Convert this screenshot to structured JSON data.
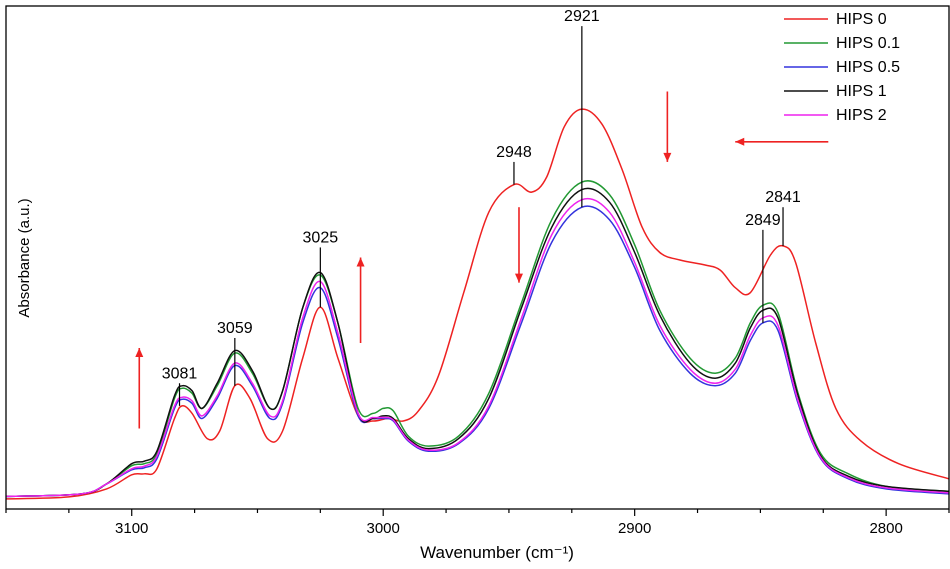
{
  "chart_data": {
    "type": "line",
    "title": "",
    "xlabel": "Wavenumber (cm⁻¹)",
    "ylabel": "Absorbance (a.u.)",
    "xlim": [
      3150,
      2775
    ],
    "ylim": [
      0,
      1.0
    ],
    "x_reversed": true,
    "xticks": [
      3100,
      3000,
      2900,
      2800
    ],
    "grid": false,
    "legend_position": "top-right",
    "series": [
      {
        "name": "HIPS 0",
        "color": "#ee2222",
        "points": [
          [
            3150,
            0.02
          ],
          [
            3125,
            0.024
          ],
          [
            3110,
            0.04
          ],
          [
            3100,
            0.068
          ],
          [
            3095,
            0.07
          ],
          [
            3090,
            0.08
          ],
          [
            3083,
            0.18
          ],
          [
            3080,
            0.205
          ],
          [
            3076,
            0.19
          ],
          [
            3070,
            0.14
          ],
          [
            3065,
            0.155
          ],
          [
            3059,
            0.245
          ],
          [
            3053,
            0.22
          ],
          [
            3046,
            0.14
          ],
          [
            3040,
            0.155
          ],
          [
            3032,
            0.3
          ],
          [
            3025,
            0.401
          ],
          [
            3018,
            0.3
          ],
          [
            3010,
            0.185
          ],
          [
            3004,
            0.175
          ],
          [
            2998,
            0.18
          ],
          [
            2992,
            0.175
          ],
          [
            2986,
            0.195
          ],
          [
            2978,
            0.265
          ],
          [
            2968,
            0.43
          ],
          [
            2958,
            0.59
          ],
          [
            2948,
            0.645
          ],
          [
            2941,
            0.63
          ],
          [
            2935,
            0.66
          ],
          [
            2928,
            0.76
          ],
          [
            2921,
            0.795
          ],
          [
            2913,
            0.765
          ],
          [
            2905,
            0.675
          ],
          [
            2897,
            0.56
          ],
          [
            2890,
            0.51
          ],
          [
            2882,
            0.495
          ],
          [
            2872,
            0.485
          ],
          [
            2866,
            0.475
          ],
          [
            2860,
            0.44
          ],
          [
            2854,
            0.43
          ],
          [
            2846,
            0.505
          ],
          [
            2841,
            0.523
          ],
          [
            2836,
            0.49
          ],
          [
            2828,
            0.33
          ],
          [
            2820,
            0.2
          ],
          [
            2810,
            0.135
          ],
          [
            2795,
            0.09
          ],
          [
            2775,
            0.06
          ]
        ]
      },
      {
        "name": "HIPS 0.1",
        "color": "#229933",
        "points": [
          [
            3150,
            0.025
          ],
          [
            3120,
            0.03
          ],
          [
            3110,
            0.05
          ],
          [
            3100,
            0.086
          ],
          [
            3095,
            0.09
          ],
          [
            3090,
            0.11
          ],
          [
            3083,
            0.22
          ],
          [
            3080,
            0.24
          ],
          [
            3076,
            0.23
          ],
          [
            3072,
            0.2
          ],
          [
            3066,
            0.245
          ],
          [
            3059,
            0.31
          ],
          [
            3052,
            0.27
          ],
          [
            3045,
            0.2
          ],
          [
            3040,
            0.235
          ],
          [
            3032,
            0.4
          ],
          [
            3025,
            0.465
          ],
          [
            3018,
            0.37
          ],
          [
            3010,
            0.2
          ],
          [
            3004,
            0.19
          ],
          [
            3000,
            0.2
          ],
          [
            2996,
            0.195
          ],
          [
            2990,
            0.145
          ],
          [
            2982,
            0.125
          ],
          [
            2970,
            0.145
          ],
          [
            2958,
            0.23
          ],
          [
            2945,
            0.41
          ],
          [
            2933,
            0.575
          ],
          [
            2921,
            0.65
          ],
          [
            2910,
            0.625
          ],
          [
            2900,
            0.525
          ],
          [
            2890,
            0.395
          ],
          [
            2878,
            0.3
          ],
          [
            2868,
            0.27
          ],
          [
            2860,
            0.3
          ],
          [
            2854,
            0.37
          ],
          [
            2849,
            0.405
          ],
          [
            2843,
            0.39
          ],
          [
            2835,
            0.23
          ],
          [
            2826,
            0.11
          ],
          [
            2815,
            0.07
          ],
          [
            2800,
            0.045
          ],
          [
            2775,
            0.035
          ]
        ]
      },
      {
        "name": "HIPS 0.5",
        "color": "#3333dd",
        "points": [
          [
            3150,
            0.025
          ],
          [
            3120,
            0.03
          ],
          [
            3110,
            0.05
          ],
          [
            3100,
            0.078
          ],
          [
            3095,
            0.082
          ],
          [
            3090,
            0.1
          ],
          [
            3083,
            0.2
          ],
          [
            3080,
            0.218
          ],
          [
            3076,
            0.21
          ],
          [
            3072,
            0.18
          ],
          [
            3066,
            0.22
          ],
          [
            3059,
            0.285
          ],
          [
            3052,
            0.245
          ],
          [
            3045,
            0.18
          ],
          [
            3040,
            0.21
          ],
          [
            3032,
            0.37
          ],
          [
            3025,
            0.44
          ],
          [
            3018,
            0.34
          ],
          [
            3010,
            0.185
          ],
          [
            3004,
            0.18
          ],
          [
            3000,
            0.18
          ],
          [
            2996,
            0.175
          ],
          [
            2990,
            0.135
          ],
          [
            2982,
            0.115
          ],
          [
            2970,
            0.13
          ],
          [
            2958,
            0.2
          ],
          [
            2945,
            0.37
          ],
          [
            2933,
            0.53
          ],
          [
            2921,
            0.6
          ],
          [
            2910,
            0.575
          ],
          [
            2900,
            0.48
          ],
          [
            2890,
            0.355
          ],
          [
            2878,
            0.27
          ],
          [
            2868,
            0.245
          ],
          [
            2860,
            0.27
          ],
          [
            2854,
            0.335
          ],
          [
            2849,
            0.37
          ],
          [
            2843,
            0.355
          ],
          [
            2835,
            0.21
          ],
          [
            2826,
            0.1
          ],
          [
            2815,
            0.06
          ],
          [
            2800,
            0.04
          ],
          [
            2775,
            0.03
          ]
        ]
      },
      {
        "name": "HIPS 1",
        "color": "#111111",
        "points": [
          [
            3150,
            0.025
          ],
          [
            3120,
            0.03
          ],
          [
            3110,
            0.05
          ],
          [
            3100,
            0.09
          ],
          [
            3095,
            0.095
          ],
          [
            3090,
            0.115
          ],
          [
            3083,
            0.225
          ],
          [
            3080,
            0.245
          ],
          [
            3076,
            0.235
          ],
          [
            3072,
            0.2
          ],
          [
            3066,
            0.25
          ],
          [
            3059,
            0.315
          ],
          [
            3052,
            0.275
          ],
          [
            3045,
            0.2
          ],
          [
            3040,
            0.235
          ],
          [
            3032,
            0.4
          ],
          [
            3025,
            0.47
          ],
          [
            3018,
            0.37
          ],
          [
            3010,
            0.19
          ],
          [
            3004,
            0.18
          ],
          [
            3000,
            0.185
          ],
          [
            2996,
            0.18
          ],
          [
            2990,
            0.14
          ],
          [
            2982,
            0.12
          ],
          [
            2970,
            0.14
          ],
          [
            2958,
            0.22
          ],
          [
            2945,
            0.4
          ],
          [
            2933,
            0.56
          ],
          [
            2921,
            0.635
          ],
          [
            2910,
            0.61
          ],
          [
            2900,
            0.51
          ],
          [
            2890,
            0.385
          ],
          [
            2878,
            0.29
          ],
          [
            2868,
            0.26
          ],
          [
            2860,
            0.29
          ],
          [
            2854,
            0.36
          ],
          [
            2849,
            0.395
          ],
          [
            2843,
            0.38
          ],
          [
            2835,
            0.225
          ],
          [
            2826,
            0.105
          ],
          [
            2815,
            0.065
          ],
          [
            2800,
            0.045
          ],
          [
            2775,
            0.035
          ]
        ]
      },
      {
        "name": "HIPS 2",
        "color": "#ee22ee",
        "points": [
          [
            3150,
            0.025
          ],
          [
            3120,
            0.03
          ],
          [
            3110,
            0.05
          ],
          [
            3100,
            0.08
          ],
          [
            3095,
            0.085
          ],
          [
            3090,
            0.105
          ],
          [
            3083,
            0.205
          ],
          [
            3080,
            0.222
          ],
          [
            3076,
            0.215
          ],
          [
            3072,
            0.185
          ],
          [
            3066,
            0.225
          ],
          [
            3059,
            0.29
          ],
          [
            3052,
            0.25
          ],
          [
            3045,
            0.185
          ],
          [
            3040,
            0.215
          ],
          [
            3032,
            0.38
          ],
          [
            3025,
            0.452
          ],
          [
            3018,
            0.35
          ],
          [
            3010,
            0.19
          ],
          [
            3004,
            0.182
          ],
          [
            3000,
            0.182
          ],
          [
            2996,
            0.177
          ],
          [
            2990,
            0.137
          ],
          [
            2982,
            0.117
          ],
          [
            2970,
            0.132
          ],
          [
            2958,
            0.205
          ],
          [
            2945,
            0.38
          ],
          [
            2933,
            0.545
          ],
          [
            2921,
            0.615
          ],
          [
            2910,
            0.59
          ],
          [
            2900,
            0.49
          ],
          [
            2890,
            0.365
          ],
          [
            2878,
            0.278
          ],
          [
            2868,
            0.25
          ],
          [
            2860,
            0.278
          ],
          [
            2854,
            0.345
          ],
          [
            2849,
            0.38
          ],
          [
            2843,
            0.365
          ],
          [
            2835,
            0.215
          ],
          [
            2826,
            0.102
          ],
          [
            2815,
            0.062
          ],
          [
            2800,
            0.042
          ],
          [
            2775,
            0.032
          ]
        ]
      }
    ],
    "peak_labels": [
      {
        "label": "3081",
        "x": 3081,
        "y_low": 0.205,
        "y_high": 0.25
      },
      {
        "label": "3059",
        "x": 3059,
        "y_low": 0.245,
        "y_high": 0.34
      },
      {
        "label": "3025",
        "x": 3025,
        "y_low": 0.401,
        "y_high": 0.52
      },
      {
        "label": "2948",
        "x": 2948,
        "y_low": 0.645,
        "y_high": 0.69
      },
      {
        "label": "2921",
        "x": 2921,
        "y_low": 0.6,
        "y_high": 0.96
      },
      {
        "label": "2849",
        "x": 2849,
        "y_low": 0.37,
        "y_high": 0.555
      },
      {
        "label": "2841",
        "x": 2841,
        "y_low": 0.523,
        "y_high": 0.6
      }
    ],
    "arrows": [
      {
        "direction": "up",
        "x": 3097,
        "y_from": 0.16,
        "y_to": 0.32
      },
      {
        "direction": "up",
        "x": 3009,
        "y_from": 0.33,
        "y_to": 0.5
      },
      {
        "direction": "down",
        "x": 2946,
        "y_from": 0.6,
        "y_to": 0.45
      },
      {
        "direction": "down",
        "x": 2887,
        "y_from": 0.83,
        "y_to": 0.69
      },
      {
        "direction": "left",
        "y": 0.73,
        "x_from": 2823,
        "x_to": 2860
      }
    ]
  }
}
